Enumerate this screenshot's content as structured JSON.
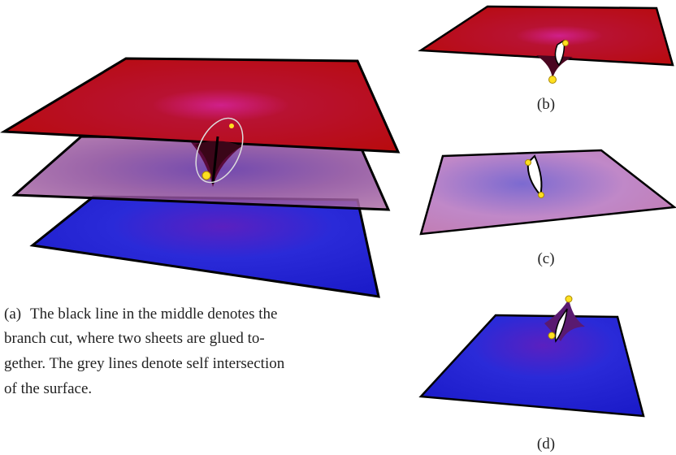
{
  "figure": {
    "panels": [
      {
        "label": "(a)",
        "caption_lines": [
          "The black line in the middle denotes the",
          "branch cut, where two sheets are glued to-",
          "gether. The grey lines denote self intersection",
          "of the surface."
        ]
      },
      {
        "label": "(b)"
      },
      {
        "label": "(c)"
      },
      {
        "label": "(d)"
      }
    ]
  }
}
